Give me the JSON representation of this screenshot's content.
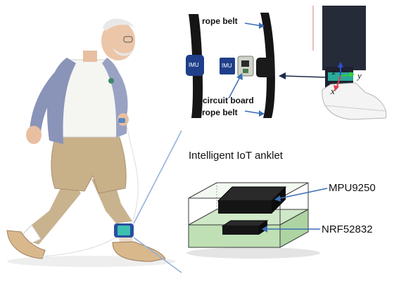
{
  "labels": {
    "rope_belt_top": "rope belt",
    "circuit_board": "circuit board",
    "rope_belt_bottom": "rope belt",
    "imu_left": "IMU",
    "imu_chip": "IMU",
    "inset_title": "Intelligent IoT anklet",
    "chip_top": "MPU9250",
    "chip_bottom": "NRF52832"
  },
  "axes": {
    "z": "z",
    "y": "y",
    "x": "x"
  },
  "colors": {
    "arrow_blue": "#3a6fb5",
    "inset_border": "#8fb0d8",
    "pcb_green": "#c8e6c0",
    "chip_black": "#1a1a1a",
    "anklet_teal": "#3cc0b0",
    "imu_blue": "#1f3f8a"
  },
  "icons": {
    "person": "elderly-man-walking-illustration",
    "leg": "leg-with-sneaker-photo",
    "belt": "rope-belt-strap"
  }
}
